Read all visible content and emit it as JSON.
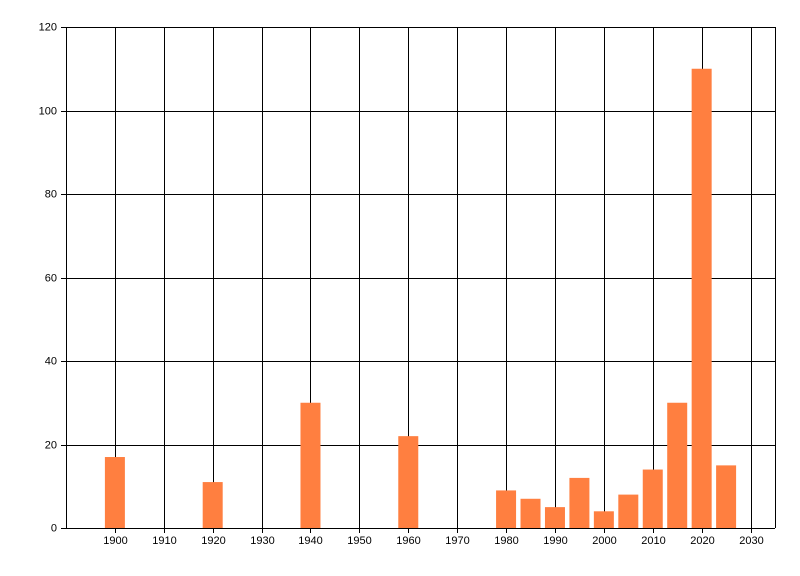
{
  "chart_data": {
    "type": "bar",
    "x": [
      1900,
      1920,
      1940,
      1960,
      1980,
      1985,
      1990,
      1995,
      2000,
      2005,
      2010,
      2015,
      2020,
      2025
    ],
    "values": [
      17,
      11,
      30,
      22,
      9,
      7,
      5,
      12,
      4,
      8,
      14,
      30,
      110,
      15
    ],
    "color": "#ff7f40",
    "xlim": [
      1890,
      2035
    ],
    "xticks": [
      1900,
      1910,
      1920,
      1930,
      1940,
      1950,
      1960,
      1970,
      1980,
      1990,
      2000,
      2010,
      2020,
      2030
    ],
    "ylim": [
      0,
      120
    ],
    "yticks": [
      0,
      20,
      40,
      60,
      80,
      100,
      120
    ],
    "grid": true
  }
}
